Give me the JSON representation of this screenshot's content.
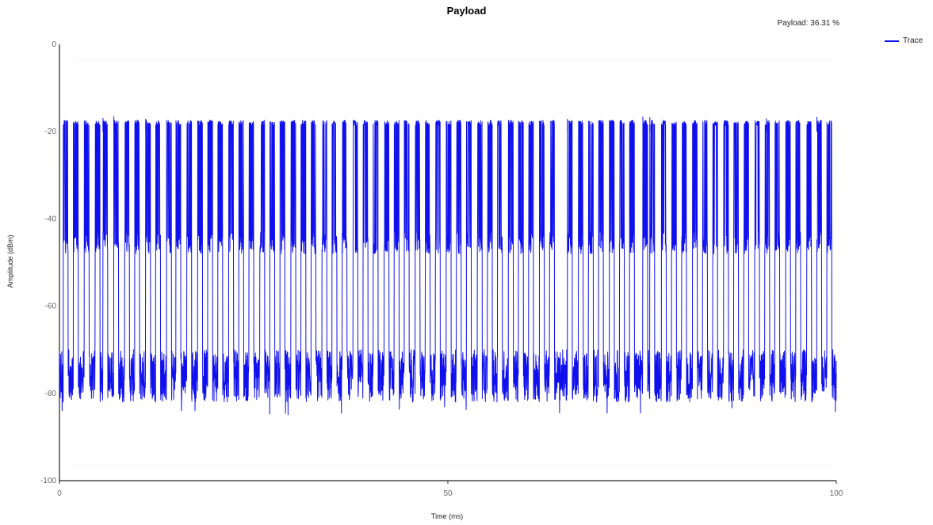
{
  "chart_data": {
    "type": "line",
    "title": "Payload",
    "annotation": "Payload: 36.31 %",
    "xlabel": "Time (ms)",
    "ylabel": "Amplitude (dBm)",
    "xlim": [
      0,
      100
    ],
    "ylim": [
      -100,
      0
    ],
    "x_ticks": [
      0,
      50,
      100
    ],
    "y_ticks": [
      0,
      -20,
      -40,
      -60,
      -80,
      -100
    ],
    "legend_position": "top-right",
    "grid": false,
    "series": [
      {
        "name": "Trace",
        "color": "#1010ee",
        "noise_floor_band": [
          -82,
          -70
        ],
        "burst_plateau_band": [
          -48,
          -43
        ],
        "peak_level": -18,
        "min_value": -85,
        "max_value": -16,
        "burst_times": [
          0.5,
          1.8,
          3.2,
          4.6,
          5.6,
          7.0,
          8.4,
          9.7,
          11.1,
          12.4,
          13.8,
          15.0,
          16.4,
          17.8,
          19.1,
          20.4,
          21.8,
          23.1,
          24.4,
          25.8,
          27.1,
          28.4,
          29.8,
          31.1,
          32.4,
          33.8,
          35.1,
          36.4,
          37.8,
          39.1,
          40.4,
          41.8,
          43.1,
          44.4,
          45.8,
          47.1,
          48.4,
          49.8,
          51.1,
          52.4,
          53.8,
          55.1,
          56.4,
          57.8,
          59.1,
          60.4,
          61.8,
          63.1,
          65.4,
          66.8,
          68.1,
          69.4,
          70.8,
          72.1,
          73.4,
          75.1,
          76.0,
          77.5,
          78.8,
          80.1,
          81.5,
          82.8,
          84.1,
          85.5,
          86.8,
          88.1,
          89.5,
          90.8,
          92.1,
          93.5,
          94.8,
          96.2,
          97.5,
          98.8
        ],
        "values_note": ""
      }
    ]
  }
}
